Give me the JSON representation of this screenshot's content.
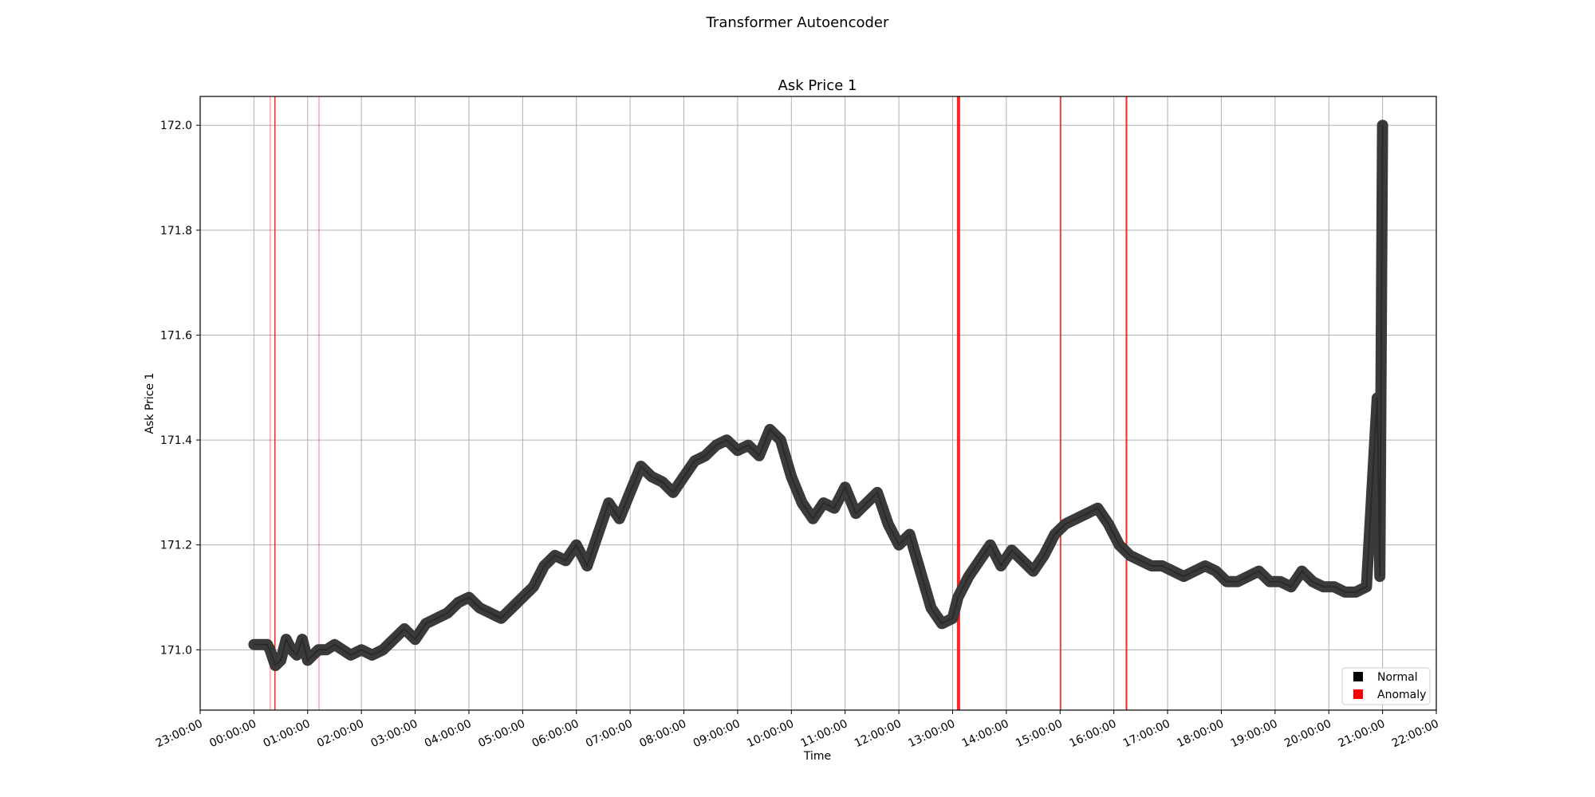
{
  "figure": {
    "suptitle": "Transformer Autoencoder"
  },
  "chart_data": {
    "type": "line",
    "title": "Ask Price 1",
    "xlabel": "Time",
    "ylabel": "Ask Price 1",
    "x_unit": "hour of day (23:00 of previous day = -1)",
    "xlim": [
      -1,
      22
    ],
    "ylim": [
      170.885,
      172.055
    ],
    "grid": true,
    "x_ticks": [
      {
        "value": -1,
        "label": "23:00:00"
      },
      {
        "value": 0,
        "label": "00:00:00"
      },
      {
        "value": 1,
        "label": "01:00:00"
      },
      {
        "value": 2,
        "label": "02:00:00"
      },
      {
        "value": 3,
        "label": "03:00:00"
      },
      {
        "value": 4,
        "label": "04:00:00"
      },
      {
        "value": 5,
        "label": "05:00:00"
      },
      {
        "value": 6,
        "label": "06:00:00"
      },
      {
        "value": 7,
        "label": "07:00:00"
      },
      {
        "value": 8,
        "label": "08:00:00"
      },
      {
        "value": 9,
        "label": "09:00:00"
      },
      {
        "value": 10,
        "label": "10:00:00"
      },
      {
        "value": 11,
        "label": "11:00:00"
      },
      {
        "value": 12,
        "label": "12:00:00"
      },
      {
        "value": 13,
        "label": "13:00:00"
      },
      {
        "value": 14,
        "label": "14:00:00"
      },
      {
        "value": 15,
        "label": "15:00:00"
      },
      {
        "value": 16,
        "label": "16:00:00"
      },
      {
        "value": 17,
        "label": "17:00:00"
      },
      {
        "value": 18,
        "label": "18:00:00"
      },
      {
        "value": 19,
        "label": "19:00:00"
      },
      {
        "value": 20,
        "label": "20:00:00"
      },
      {
        "value": 21,
        "label": "21:00:00"
      },
      {
        "value": 22,
        "label": "22:00:00"
      }
    ],
    "y_ticks": [
      {
        "value": 171.0,
        "label": "171.0"
      },
      {
        "value": 171.2,
        "label": "171.2"
      },
      {
        "value": 171.4,
        "label": "171.4"
      },
      {
        "value": 171.6,
        "label": "171.6"
      },
      {
        "value": 171.8,
        "label": "171.8"
      },
      {
        "value": 172.0,
        "label": "172.0"
      }
    ],
    "series": [
      {
        "name": "Normal",
        "color": "#000000",
        "x": [
          0.0,
          0.25,
          0.3,
          0.4,
          0.5,
          0.6,
          0.7,
          0.8,
          0.9,
          1.0,
          1.1,
          1.2,
          1.35,
          1.5,
          1.65,
          1.8,
          2.0,
          2.2,
          2.4,
          2.6,
          2.8,
          3.0,
          3.2,
          3.4,
          3.6,
          3.8,
          4.0,
          4.2,
          4.4,
          4.6,
          4.8,
          5.0,
          5.2,
          5.4,
          5.6,
          5.8,
          6.0,
          6.2,
          6.4,
          6.6,
          6.8,
          7.0,
          7.2,
          7.4,
          7.6,
          7.8,
          8.0,
          8.2,
          8.4,
          8.6,
          8.8,
          9.0,
          9.2,
          9.4,
          9.6,
          9.8,
          10.0,
          10.2,
          10.4,
          10.6,
          10.8,
          11.0,
          11.2,
          11.4,
          11.6,
          11.8,
          12.0,
          12.2,
          12.4,
          12.6,
          12.8,
          13.0,
          13.1,
          13.3,
          13.5,
          13.7,
          13.9,
          14.1,
          14.3,
          14.5,
          14.7,
          14.9,
          15.1,
          15.3,
          15.5,
          15.7,
          15.9,
          16.1,
          16.3,
          16.5,
          16.7,
          16.9,
          17.1,
          17.3,
          17.5,
          17.7,
          17.9,
          18.1,
          18.3,
          18.5,
          18.7,
          18.9,
          19.1,
          19.3,
          19.5,
          19.7,
          19.9,
          20.1,
          20.3,
          20.5,
          20.7,
          20.9,
          20.95,
          21.0
        ],
        "y": [
          171.01,
          171.01,
          171.0,
          170.97,
          170.98,
          171.02,
          171.0,
          170.99,
          171.02,
          170.98,
          170.99,
          171.0,
          171.0,
          171.01,
          171.0,
          170.99,
          171.0,
          170.99,
          171.0,
          171.02,
          171.04,
          171.02,
          171.05,
          171.06,
          171.07,
          171.09,
          171.1,
          171.08,
          171.07,
          171.06,
          171.08,
          171.1,
          171.12,
          171.16,
          171.18,
          171.17,
          171.2,
          171.16,
          171.22,
          171.28,
          171.25,
          171.3,
          171.35,
          171.33,
          171.32,
          171.3,
          171.33,
          171.36,
          171.37,
          171.39,
          171.4,
          171.38,
          171.39,
          171.37,
          171.42,
          171.4,
          171.33,
          171.28,
          171.25,
          171.28,
          171.27,
          171.31,
          171.26,
          171.28,
          171.3,
          171.24,
          171.2,
          171.22,
          171.15,
          171.08,
          171.05,
          171.06,
          171.1,
          171.14,
          171.17,
          171.2,
          171.16,
          171.19,
          171.17,
          171.15,
          171.18,
          171.22,
          171.24,
          171.25,
          171.26,
          171.27,
          171.24,
          171.2,
          171.18,
          171.17,
          171.16,
          171.16,
          171.15,
          171.14,
          171.15,
          171.16,
          171.15,
          171.13,
          171.13,
          171.14,
          171.15,
          171.13,
          171.13,
          171.12,
          171.15,
          171.13,
          171.12,
          171.12,
          171.11,
          171.11,
          171.12,
          171.48,
          171.14,
          172.0
        ]
      },
      {
        "name": "Anomaly",
        "color": "#ff0000",
        "spans_x": [
          {
            "start": 0.29,
            "end": 0.3
          },
          {
            "start": 0.38,
            "end": 0.4
          },
          {
            "start": 1.2,
            "end": 1.21
          },
          {
            "start": 13.08,
            "end": 13.14
          },
          {
            "start": 15.0,
            "end": 15.02
          },
          {
            "start": 16.22,
            "end": 16.25
          }
        ]
      }
    ],
    "legend_placement": "lower-right"
  }
}
